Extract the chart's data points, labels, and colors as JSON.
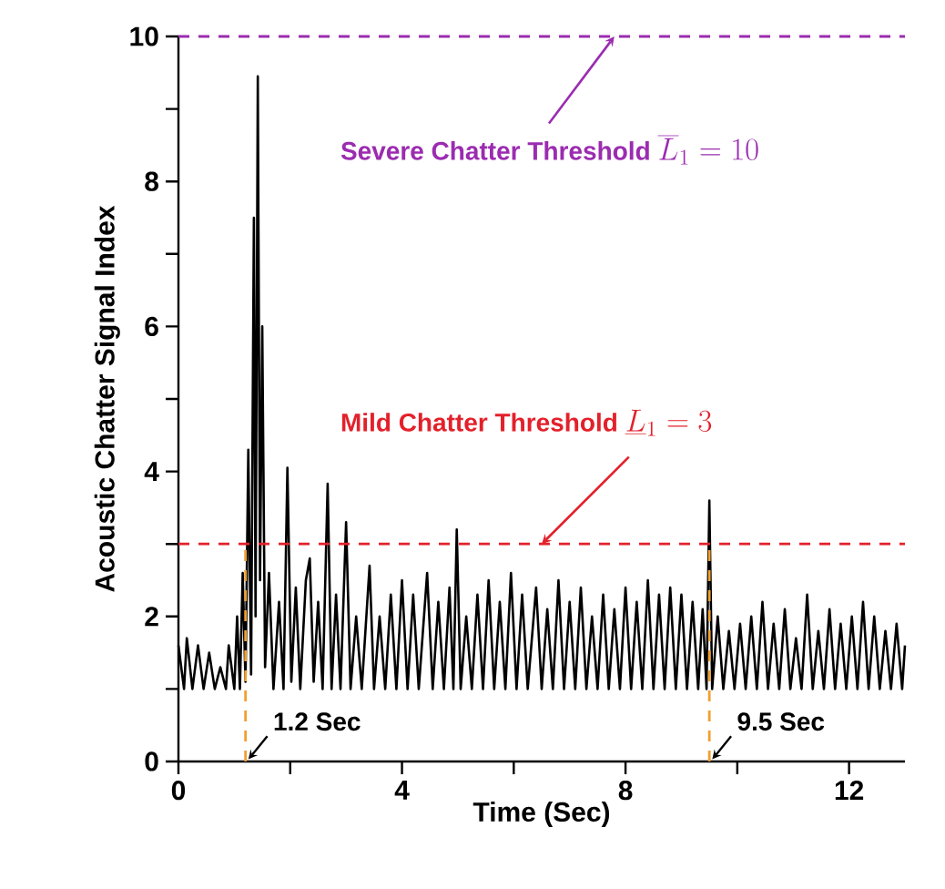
{
  "chart_data": {
    "type": "line",
    "xlabel": "Time (Sec)",
    "ylabel": "Acoustic Chatter Signal Index",
    "color": "#000000",
    "x": [
      0.0,
      0.1,
      0.15,
      0.25,
      0.35,
      0.45,
      0.55,
      0.65,
      0.75,
      0.85,
      0.9,
      1.0,
      1.05,
      1.1,
      1.15,
      1.2,
      1.25,
      1.3,
      1.35,
      1.38,
      1.42,
      1.46,
      1.5,
      1.55,
      1.62,
      1.7,
      1.8,
      1.88,
      1.95,
      2.02,
      2.1,
      2.18,
      2.28,
      2.35,
      2.42,
      2.5,
      2.58,
      2.67,
      2.74,
      2.82,
      2.9,
      3.0,
      3.08,
      3.18,
      3.28,
      3.42,
      3.5,
      3.6,
      3.7,
      3.8,
      3.9,
      4.0,
      4.1,
      4.2,
      4.3,
      4.45,
      4.55,
      4.65,
      4.75,
      4.85,
      4.92,
      4.98,
      5.05,
      5.15,
      5.25,
      5.35,
      5.45,
      5.55,
      5.65,
      5.75,
      5.85,
      5.95,
      6.05,
      6.15,
      6.25,
      6.4,
      6.5,
      6.6,
      6.7,
      6.8,
      6.9,
      7.0,
      7.1,
      7.2,
      7.3,
      7.4,
      7.5,
      7.6,
      7.7,
      7.8,
      7.9,
      8.0,
      8.1,
      8.2,
      8.3,
      8.4,
      8.5,
      8.6,
      8.7,
      8.8,
      8.9,
      9.0,
      9.1,
      9.2,
      9.3,
      9.38,
      9.45,
      9.5,
      9.55,
      9.65,
      9.75,
      9.85,
      9.95,
      10.05,
      10.15,
      10.25,
      10.35,
      10.45,
      10.55,
      10.65,
      10.75,
      10.85,
      10.95,
      11.05,
      11.15,
      11.25,
      11.35,
      11.45,
      11.55,
      11.65,
      11.75,
      11.85,
      11.95,
      12.05,
      12.15,
      12.25,
      12.35,
      12.45,
      12.55,
      12.65,
      12.75,
      12.85,
      12.95,
      13.0
    ],
    "values": [
      1.6,
      1.0,
      1.7,
      1.0,
      1.6,
      1.0,
      1.5,
      1.0,
      1.3,
      1.0,
      1.6,
      1.0,
      2.0,
      1.0,
      2.6,
      1.1,
      4.3,
      1.2,
      7.5,
      2.0,
      9.45,
      2.5,
      6.0,
      1.3,
      2.6,
      1.0,
      2.2,
      1.0,
      4.05,
      1.1,
      2.4,
      1.0,
      2.5,
      2.8,
      1.1,
      2.2,
      1.0,
      3.83,
      1.0,
      2.3,
      1.0,
      3.3,
      1.0,
      2.0,
      1.0,
      2.7,
      1.0,
      2.0,
      1.0,
      2.3,
      1.0,
      2.5,
      1.0,
      2.3,
      1.0,
      2.6,
      1.0,
      2.2,
      1.0,
      2.4,
      1.0,
      3.2,
      1.0,
      2.0,
      1.0,
      2.3,
      1.0,
      2.5,
      1.0,
      2.2,
      1.0,
      2.6,
      1.0,
      2.3,
      1.0,
      2.4,
      1.0,
      2.1,
      1.0,
      2.5,
      1.0,
      2.2,
      1.0,
      2.4,
      1.0,
      2.0,
      1.0,
      2.3,
      1.0,
      2.1,
      1.0,
      2.4,
      1.0,
      2.2,
      1.0,
      2.5,
      1.0,
      2.3,
      1.0,
      2.4,
      1.0,
      2.3,
      1.0,
      2.2,
      1.0,
      2.1,
      1.0,
      3.6,
      1.0,
      2.0,
      1.0,
      1.8,
      1.0,
      1.9,
      1.0,
      2.0,
      1.0,
      2.2,
      1.0,
      1.9,
      1.0,
      2.1,
      1.0,
      1.7,
      1.0,
      2.3,
      1.0,
      1.8,
      1.0,
      2.1,
      1.0,
      1.9,
      1.0,
      2.0,
      1.0,
      2.2,
      1.0,
      2.0,
      1.0,
      1.8,
      1.0,
      1.9,
      1.0,
      1.6
    ],
    "xlim": [
      0,
      13
    ],
    "ylim": [
      0,
      10
    ],
    "xticks": [
      0,
      {
        "value": 2,
        "label": null
      },
      4,
      {
        "value": 6,
        "label": null
      },
      8,
      {
        "value": 10,
        "label": null
      },
      12
    ],
    "yticks": [
      0,
      {
        "value": 1,
        "label": null
      },
      2,
      {
        "value": 3,
        "label": null
      },
      4,
      {
        "value": 5,
        "label": null
      },
      6,
      {
        "value": 7,
        "label": null
      },
      8,
      {
        "value": 9,
        "label": null
      },
      10
    ],
    "ref_lines": [
      {
        "axis": "y",
        "value": 10,
        "label": "Severe Chatter Threshold",
        "color": "#9b2cb0",
        "line_style": "dashed"
      },
      {
        "axis": "y",
        "value": 3,
        "label": "Mild Chatter Threshold",
        "color": "#e3212b",
        "line_style": "dashed"
      },
      {
        "axis": "x",
        "value": 1.2,
        "label": "1.2 Sec",
        "color": "#f0a030",
        "line_style": "dashed"
      },
      {
        "axis": "x",
        "value": 9.5,
        "label": "9.5 Sec",
        "color": "#f0a030",
        "line_style": "dashed"
      }
    ],
    "annotations": [
      "\\overline{L}_{1}=10",
      {
        "text": "\\underline{L}_{1}=3",
        "x": 6.5,
        "y": 3
      }
    ]
  }
}
